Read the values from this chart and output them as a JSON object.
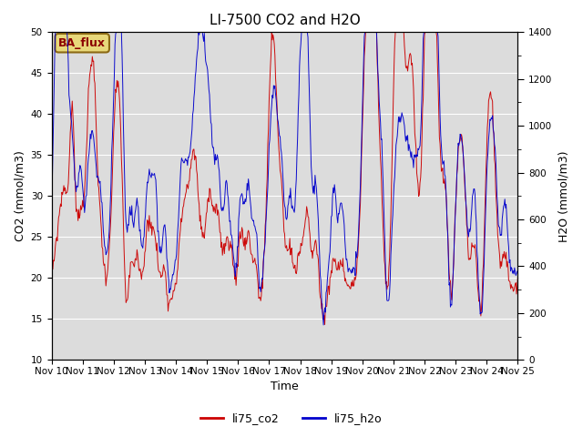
{
  "title": "LI-7500 CO2 and H2O",
  "xlabel": "Time",
  "ylabel_left": "CO2 (mmol/m3)",
  "ylabel_right": "H2O (mmol/m3)",
  "ylim_left": [
    10,
    50
  ],
  "ylim_right": [
    0,
    1400
  ],
  "xlim": [
    0,
    360
  ],
  "background_color": "#ffffff",
  "plot_bg_color": "#dcdcdc",
  "line_co2_color": "#cc0000",
  "line_h2o_color": "#0000cc",
  "legend_labels": [
    "li75_co2",
    "li75_h2o"
  ],
  "badge_text": "BA_flux",
  "badge_facecolor": "#e8d87a",
  "badge_edgecolor": "#8B6914",
  "xtick_labels": [
    "Nov 10",
    "Nov 11",
    "Nov 12",
    "Nov 13",
    "Nov 14",
    "Nov 15",
    "Nov 16",
    "Nov 17",
    "Nov 18",
    "Nov 19",
    "Nov 20",
    "Nov 21",
    "Nov 22",
    "Nov 23",
    "Nov 24",
    "Nov 25"
  ],
  "xtick_positions": [
    0,
    24,
    48,
    72,
    96,
    120,
    144,
    168,
    192,
    216,
    240,
    264,
    288,
    312,
    336,
    360
  ],
  "title_fontsize": 11,
  "axis_label_fontsize": 9,
  "tick_fontsize": 7.5
}
